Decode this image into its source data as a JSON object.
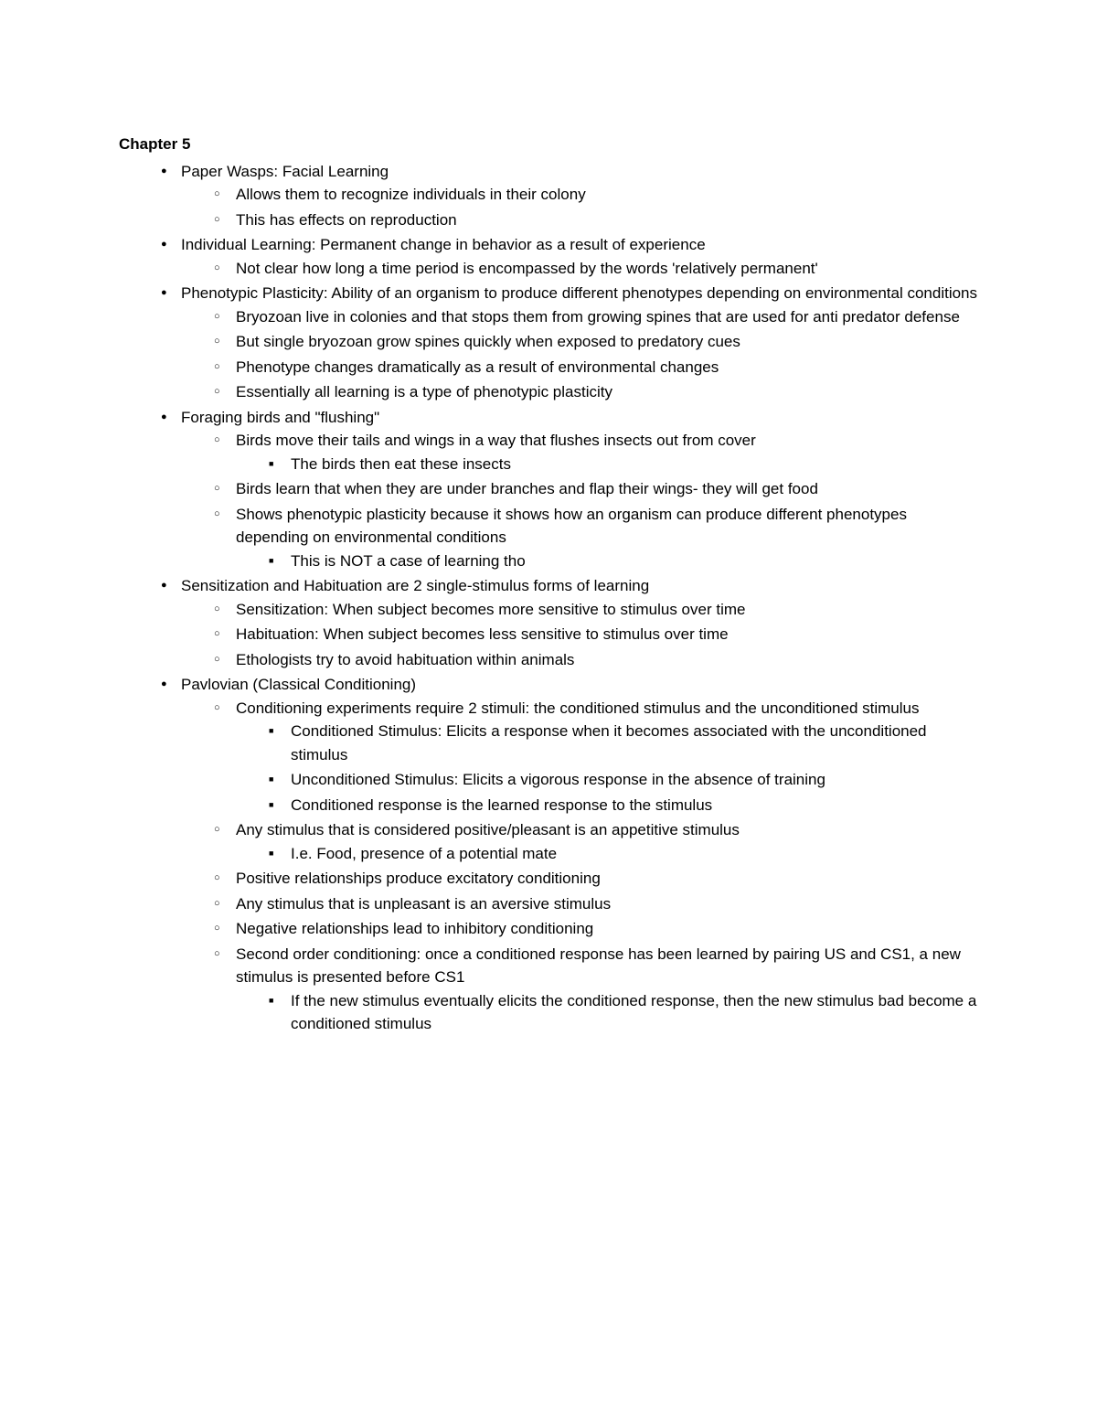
{
  "title": "Chapter 5",
  "items": [
    {
      "text": "Paper Wasps: Facial Learning",
      "children": [
        {
          "text": "Allows them to recognize individuals in their colony"
        },
        {
          "text": "This has effects on reproduction"
        }
      ]
    },
    {
      "text": "Individual Learning: Permanent change in behavior as a result of experience",
      "children": [
        {
          "text": "Not clear how long a time period is encompassed by the words 'relatively permanent'"
        }
      ]
    },
    {
      "text": "Phenotypic Plasticity: Ability of an organism to produce different phenotypes depending on environmental conditions",
      "children": [
        {
          "text": "Bryozoan live in colonies and that stops them from growing spines that are used for anti predator defense"
        },
        {
          "text": "But single bryozoan grow spines quickly when exposed to predatory cues"
        },
        {
          "text": "Phenotype changes dramatically as a result of environmental changes"
        },
        {
          "text": "Essentially all learning is a type of phenotypic plasticity"
        }
      ]
    },
    {
      "text": "Foraging birds and \"flushing\"",
      "children": [
        {
          "text": "Birds move their tails and wings in a way that flushes insects out from cover",
          "children": [
            {
              "text": "The birds then eat these insects"
            }
          ]
        },
        {
          "text": "Birds learn that when they are under branches and flap their wings- they will get food"
        },
        {
          "text": "Shows phenotypic plasticity because it shows how an organism can produce different phenotypes depending on environmental conditions",
          "children": [
            {
              "text": "This is NOT a case of learning tho"
            }
          ]
        }
      ]
    },
    {
      "text": "Sensitization and Habituation are 2 single-stimulus forms of learning",
      "children": [
        {
          "text": "Sensitization: When subject becomes more sensitive to stimulus over time"
        },
        {
          "text": "Habituation: When subject becomes less sensitive to stimulus over time"
        },
        {
          "text": "Ethologists try to avoid habituation within animals"
        }
      ]
    },
    {
      "text": "Pavlovian (Classical Conditioning)",
      "children": [
        {
          "text": "Conditioning experiments require 2 stimuli: the conditioned stimulus and the unconditioned stimulus",
          "children": [
            {
              "text": "Conditioned Stimulus: Elicits a response when it becomes associated with the unconditioned stimulus"
            },
            {
              "text": "Unconditioned Stimulus: Elicits a vigorous response in the absence of training"
            },
            {
              "text": "Conditioned response is the learned response to the stimulus"
            }
          ]
        },
        {
          "text": "Any stimulus that is considered positive/pleasant is an appetitive stimulus",
          "children": [
            {
              "text": "I.e. Food, presence of a potential mate"
            }
          ]
        },
        {
          "text": "Positive relationships produce excitatory conditioning"
        },
        {
          "text": "Any stimulus that is unpleasant is an aversive stimulus"
        },
        {
          "text": "Negative relationships lead to inhibitory conditioning"
        },
        {
          "text": "Second order conditioning: once a conditioned response has been learned by pairing US and CS1, a new stimulus is presented before CS1",
          "children": [
            {
              "text": "If the new stimulus eventually elicits the conditioned response, then the new stimulus bad become a conditioned stimulus"
            }
          ]
        }
      ]
    }
  ]
}
